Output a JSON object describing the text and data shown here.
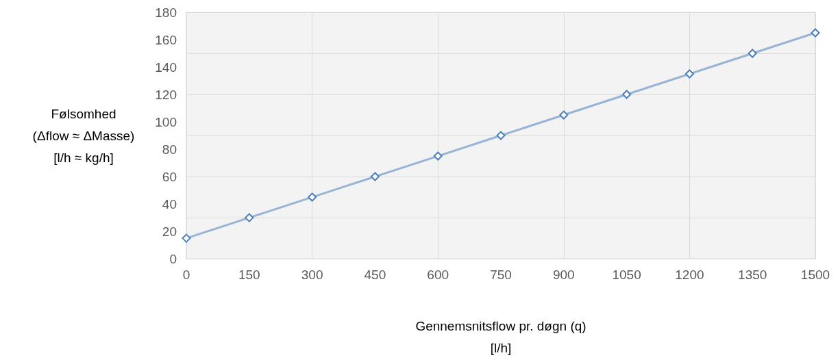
{
  "chart_data": {
    "type": "line",
    "xlabel": "Gennemsnitsflow pr. døgn (q)\n[l/h]",
    "ylabel": "Følsomhed\n(Δflow ≈ ΔMasse)\n[l/h ≈ kg/h]",
    "x": [
      0,
      150,
      300,
      450,
      600,
      750,
      900,
      1050,
      1200,
      1350,
      1500
    ],
    "series": [
      {
        "color": "#4a7ebb",
        "values": [
          15,
          30,
          45,
          60,
          75,
          90,
          105,
          120,
          135,
          150,
          165
        ]
      }
    ],
    "xlim": [
      0,
      1500
    ],
    "xticks": [
      0,
      150,
      300,
      450,
      600,
      750,
      900,
      1050,
      1200,
      1350,
      1500
    ],
    "ylim": [
      0,
      180
    ],
    "yticks": [
      0,
      20,
      40,
      60,
      80,
      100,
      120,
      140,
      160,
      180
    ],
    "grid": true,
    "marker": "diamond",
    "line_style": "solid"
  }
}
